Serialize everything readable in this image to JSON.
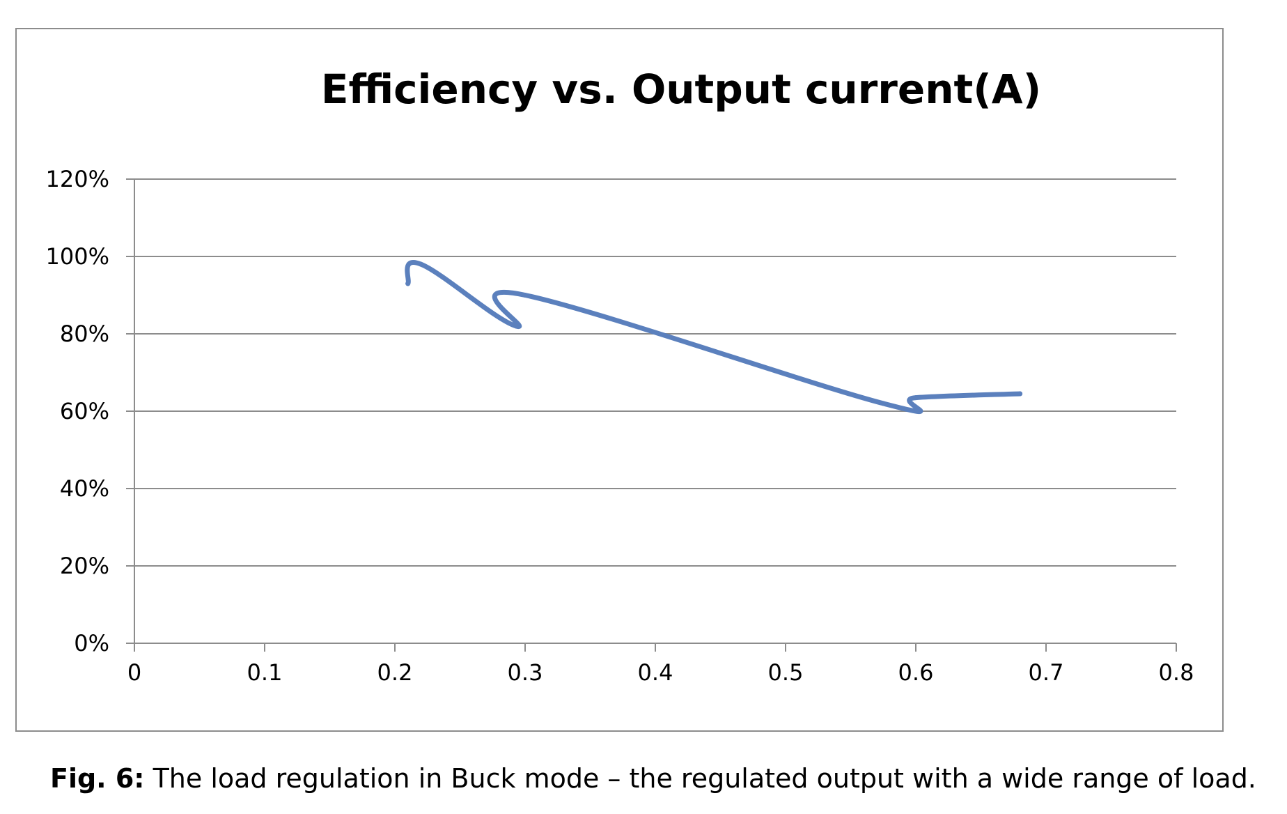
{
  "caption": {
    "label": "Fig. 6:",
    "text": " The load regulation in Buck mode – the regulated output with a wide range of load."
  },
  "chart_data": {
    "type": "line",
    "title": "Efficiency vs. Output current(A)",
    "xlabel": "",
    "ylabel": "",
    "xlim": [
      0,
      0.8
    ],
    "ylim": [
      0,
      1.2
    ],
    "x_ticks": [
      "0",
      "0.1",
      "0.2",
      "0.3",
      "0.4",
      "0.5",
      "0.6",
      "0.7",
      "0.8"
    ],
    "y_ticks": [
      "0%",
      "20%",
      "40%",
      "60%",
      "80%",
      "100%",
      "120%"
    ],
    "grid": true,
    "legend": "none",
    "series": [
      {
        "color": "#5b80bd",
        "x": [
          0.21,
          0.22,
          0.293,
          0.3,
          0.575,
          0.6,
          0.68
        ],
        "y": [
          0.93,
          0.98,
          0.82,
          0.9,
          0.62,
          0.635,
          0.645
        ]
      }
    ]
  }
}
